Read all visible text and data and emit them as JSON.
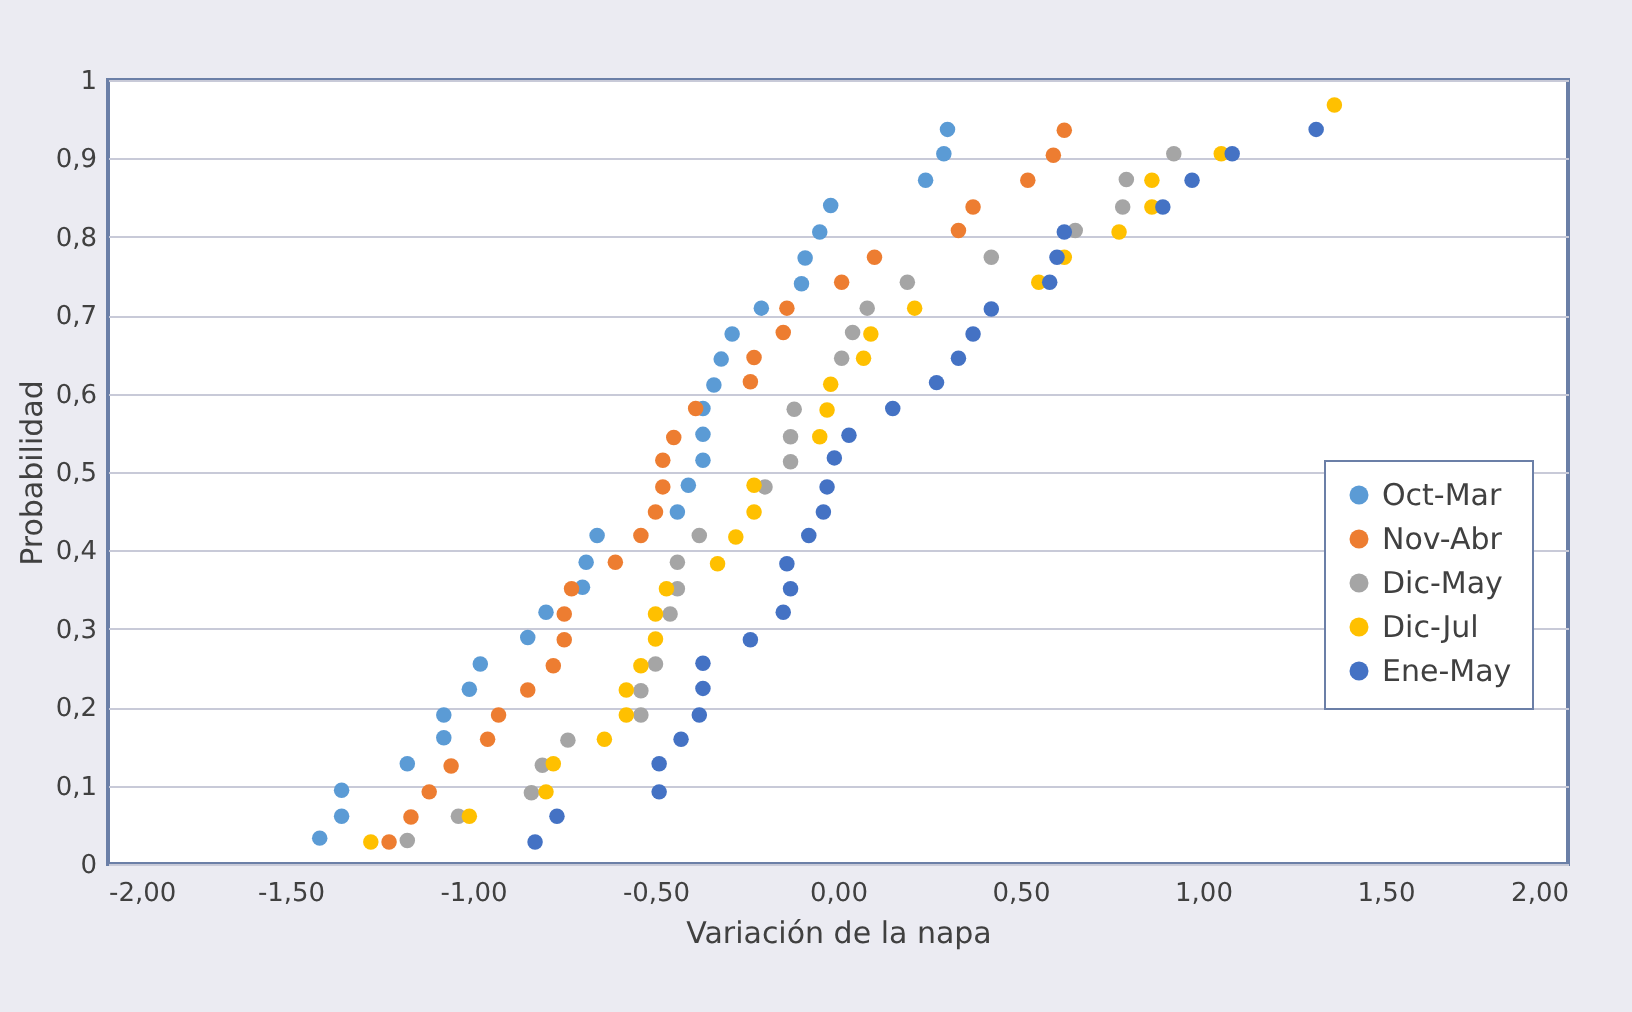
{
  "chart_data": {
    "type": "scatter",
    "xlabel": "Variación de la napa",
    "ylabel": "Probabilidad",
    "xlim": [
      -2,
      2
    ],
    "ylim": [
      0,
      1
    ],
    "xticks": [
      {
        "value": -2,
        "label": "-2,00"
      },
      {
        "value": -1.5,
        "label": "-1,50"
      },
      {
        "value": -1,
        "label": "-1,00"
      },
      {
        "value": -0.5,
        "label": "-0,50"
      },
      {
        "value": 0,
        "label": "0,00"
      },
      {
        "value": 0.5,
        "label": "0,50"
      },
      {
        "value": 1,
        "label": "1,00"
      },
      {
        "value": 1.5,
        "label": "1,50"
      },
      {
        "value": 2,
        "label": "2,00"
      }
    ],
    "yticks": [
      0,
      {
        "value": 0.1,
        "label": "0,1"
      },
      {
        "value": 0.2,
        "label": "0,2"
      },
      {
        "value": 0.3,
        "label": "0,3"
      },
      {
        "value": 0.4,
        "label": "0,4"
      },
      {
        "value": 0.5,
        "label": "0,5"
      },
      {
        "value": 0.6,
        "label": "0,6"
      },
      {
        "value": 0.7,
        "label": "0,7"
      },
      {
        "value": 0.8,
        "label": "0,8"
      },
      {
        "value": 0.9,
        "label": "0,9"
      },
      1
    ],
    "grid": "y",
    "legend": "right",
    "marker": "circle",
    "series": [
      {
        "name": "Oct-Mar",
        "color": "#5b9bd5",
        "x": [
          -1.42,
          -1.36,
          -1.36,
          -1.18,
          -1.08,
          -1.08,
          -1.01,
          -0.98,
          -0.85,
          -0.8,
          -0.7,
          -0.69,
          -0.66,
          -0.44,
          -0.41,
          -0.37,
          -0.37,
          -0.37,
          -0.34,
          -0.32,
          -0.29,
          -0.21,
          -0.1,
          -0.09,
          -0.05,
          -0.02,
          0.24,
          0.29,
          0.3
        ],
        "values": [
          0.033,
          0.061,
          0.094,
          0.128,
          0.161,
          0.19,
          0.223,
          0.255,
          0.289,
          0.321,
          0.353,
          0.385,
          0.419,
          0.449,
          0.483,
          0.515,
          0.548,
          0.581,
          0.611,
          0.644,
          0.676,
          0.709,
          0.74,
          0.773,
          0.806,
          0.84,
          0.872,
          0.906,
          0.937
        ]
      },
      {
        "name": "Nov-Abr",
        "color": "#ed7d31",
        "x": [
          -1.23,
          -1.17,
          -1.12,
          -1.06,
          -0.96,
          -0.93,
          -0.85,
          -0.78,
          -0.75,
          -0.75,
          -0.73,
          -0.61,
          -0.54,
          -0.5,
          -0.48,
          -0.48,
          -0.45,
          -0.39,
          -0.24,
          -0.23,
          -0.15,
          -0.14,
          0.01,
          0.1,
          0.33,
          0.37,
          0.52,
          0.59,
          0.62
        ],
        "values": [
          0.028,
          0.06,
          0.092,
          0.125,
          0.159,
          0.19,
          0.222,
          0.253,
          0.286,
          0.319,
          0.351,
          0.385,
          0.419,
          0.449,
          0.481,
          0.515,
          0.544,
          0.581,
          0.615,
          0.646,
          0.678,
          0.709,
          0.742,
          0.774,
          0.808,
          0.838,
          0.872,
          0.904,
          0.936
        ]
      },
      {
        "name": "Dic-May",
        "color": "#a5a5a5",
        "x": [
          -1.18,
          -1.04,
          -0.84,
          -0.81,
          -0.74,
          -0.54,
          -0.54,
          -0.5,
          -0.46,
          -0.44,
          -0.44,
          -0.38,
          -0.2,
          -0.13,
          -0.13,
          -0.12,
          0.01,
          0.04,
          0.08,
          0.19,
          0.42,
          0.65,
          0.78,
          0.79,
          0.92
        ],
        "values": [
          0.03,
          0.061,
          0.091,
          0.126,
          0.158,
          0.19,
          0.221,
          0.255,
          0.319,
          0.351,
          0.385,
          0.419,
          0.481,
          0.513,
          0.545,
          0.58,
          0.645,
          0.678,
          0.709,
          0.742,
          0.774,
          0.808,
          0.838,
          0.873,
          0.906
        ]
      },
      {
        "name": "Dic-Jul",
        "color": "#ffc000",
        "x": [
          -1.28,
          -1.01,
          -0.8,
          -0.78,
          -0.64,
          -0.58,
          -0.58,
          -0.54,
          -0.5,
          -0.5,
          -0.47,
          -0.33,
          -0.28,
          -0.23,
          -0.23,
          -0.05,
          -0.03,
          -0.02,
          0.07,
          0.09,
          0.21,
          0.55,
          0.62,
          0.77,
          0.86,
          0.86,
          1.05,
          1.36
        ],
        "values": [
          0.028,
          0.061,
          0.092,
          0.128,
          0.159,
          0.19,
          0.222,
          0.253,
          0.287,
          0.319,
          0.351,
          0.383,
          0.417,
          0.449,
          0.483,
          0.545,
          0.579,
          0.612,
          0.645,
          0.676,
          0.709,
          0.742,
          0.774,
          0.806,
          0.838,
          0.872,
          0.906,
          0.968
        ]
      },
      {
        "name": "Ene-May",
        "color": "#4472c4",
        "x": [
          -0.83,
          -0.77,
          -0.49,
          -0.49,
          -0.43,
          -0.38,
          -0.37,
          -0.37,
          -0.24,
          -0.15,
          -0.13,
          -0.14,
          -0.08,
          -0.04,
          -0.03,
          -0.01,
          0.03,
          0.15,
          0.27,
          0.33,
          0.37,
          0.42,
          0.58,
          0.6,
          0.62,
          0.89,
          0.97,
          1.08,
          1.31
        ],
        "values": [
          0.028,
          0.061,
          0.092,
          0.128,
          0.159,
          0.19,
          0.224,
          0.256,
          0.286,
          0.321,
          0.351,
          0.383,
          0.419,
          0.449,
          0.481,
          0.518,
          0.547,
          0.581,
          0.614,
          0.645,
          0.676,
          0.708,
          0.742,
          0.774,
          0.806,
          0.838,
          0.872,
          0.906,
          0.937
        ]
      }
    ]
  }
}
